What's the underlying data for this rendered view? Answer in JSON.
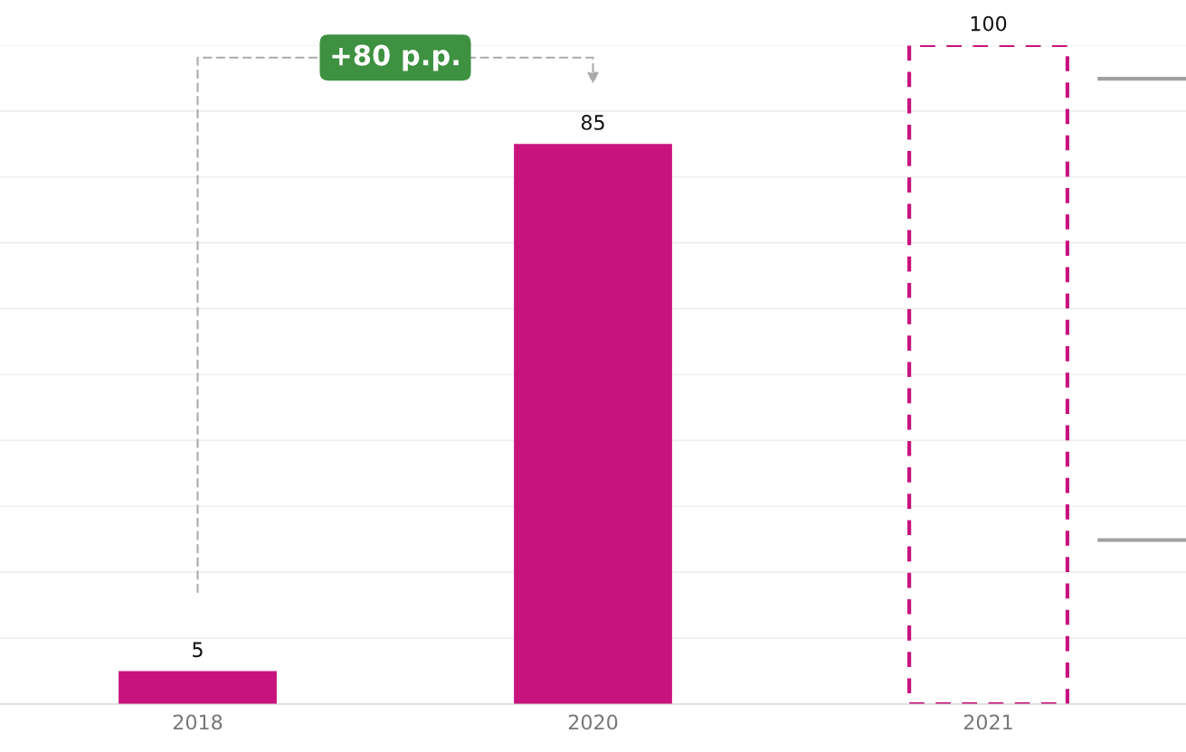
{
  "chart_data": {
    "type": "bar",
    "categories": [
      "2018",
      "2020",
      "2021"
    ],
    "series": [
      {
        "color": "#c8137e",
        "values": [
          5,
          85,
          null
        ]
      },
      {
        "color": "#c8137e",
        "values": [
          null,
          null,
          100
        ],
        "line_style": "dashed"
      }
    ],
    "ylim": [
      0,
      100
    ],
    "yticks": [
      0,
      10,
      20,
      30,
      40,
      50,
      60,
      70,
      80,
      90,
      100
    ],
    "tick_labels": "x",
    "grid": "y",
    "data_labels": true,
    "annotations": [
      "+80 p.p."
    ]
  }
}
